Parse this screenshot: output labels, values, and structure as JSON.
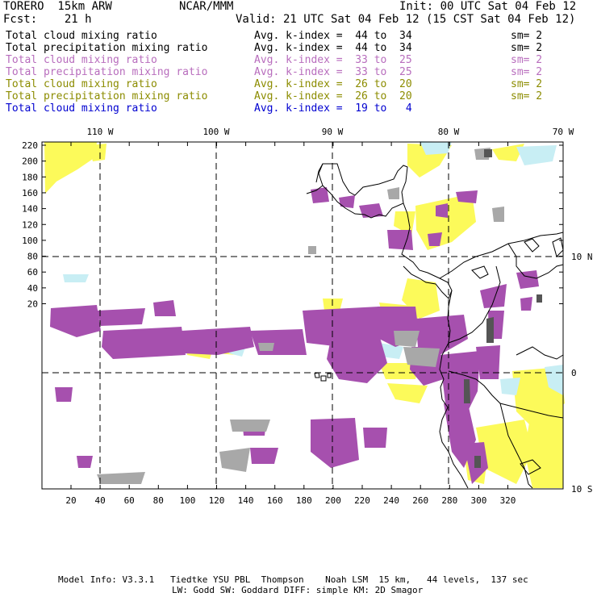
{
  "header": {
    "model": "TORERO  15km ARW",
    "org": "NCAR/MMM",
    "init": "Init: 00 UTC Sat 04 Feb 12",
    "fcst": "Fcst:    21 h",
    "valid": "Valid: 21 UTC Sat 04 Feb 12 (15 CST Sat 04 Feb 12)"
  },
  "legend": [
    {
      "variable": "Total cloud mixing ratio",
      "kindex": "Avg. k-index =  44 to  34",
      "sm": "sm= 2",
      "color": "#000000"
    },
    {
      "variable": "Total precipitation mixing ratio",
      "kindex": "Avg. k-index =  44 to  34",
      "sm": "sm= 2",
      "color": "#000000"
    },
    {
      "variable": "Total cloud mixing ratio",
      "kindex": "Avg. k-index =  33 to  25",
      "sm": "sm= 2",
      "color": "#b86dbd"
    },
    {
      "variable": "Total precipitation mixing ratio",
      "kindex": "Avg. k-index =  33 to  25",
      "sm": "sm= 2",
      "color": "#b86dbd"
    },
    {
      "variable": "Total cloud mixing ratio",
      "kindex": "Avg. k-index =  26 to  20",
      "sm": "sm= 2",
      "color": "#8c8c00"
    },
    {
      "variable": "Total precipitation mixing ratio",
      "kindex": "Avg. k-index =  26 to  20",
      "sm": "sm= 2",
      "color": "#8c8c00"
    },
    {
      "variable": "Total cloud mixing ratio",
      "kindex": "Avg. k-index =  19 to   4",
      "sm": "",
      "color": "#0000d0"
    }
  ],
  "map": {
    "lon_labels": [
      "110 W",
      "100 W",
      "90 W",
      "80 W",
      "70 W"
    ],
    "lat_labels": [
      "10 N",
      "0",
      "10 S"
    ],
    "x_ticks": [
      "20",
      "40",
      "60",
      "80",
      "100",
      "120",
      "140",
      "160",
      "180",
      "200",
      "220",
      "240",
      "260",
      "280",
      "300",
      "320"
    ],
    "y_ticks": [
      "220",
      "200",
      "180",
      "160",
      "140",
      "120",
      "100",
      "80",
      "60",
      "40",
      "20"
    ],
    "shading_colors": {
      "magenta": "#a650ae",
      "yellow": "#fcfa5a",
      "cyan": "#c8eef4",
      "gray": "#a8a8a8",
      "dark_gray": "#555555"
    }
  },
  "footer": {
    "line1": "Model Info: V3.3.1   Tiedtke YSU PBL  Thompson    Noah LSM  15 km,   44 levels,  137 sec",
    "line2": "LW: Godd SW: Goddard DIFF: simple KM: 2D Smagor"
  }
}
